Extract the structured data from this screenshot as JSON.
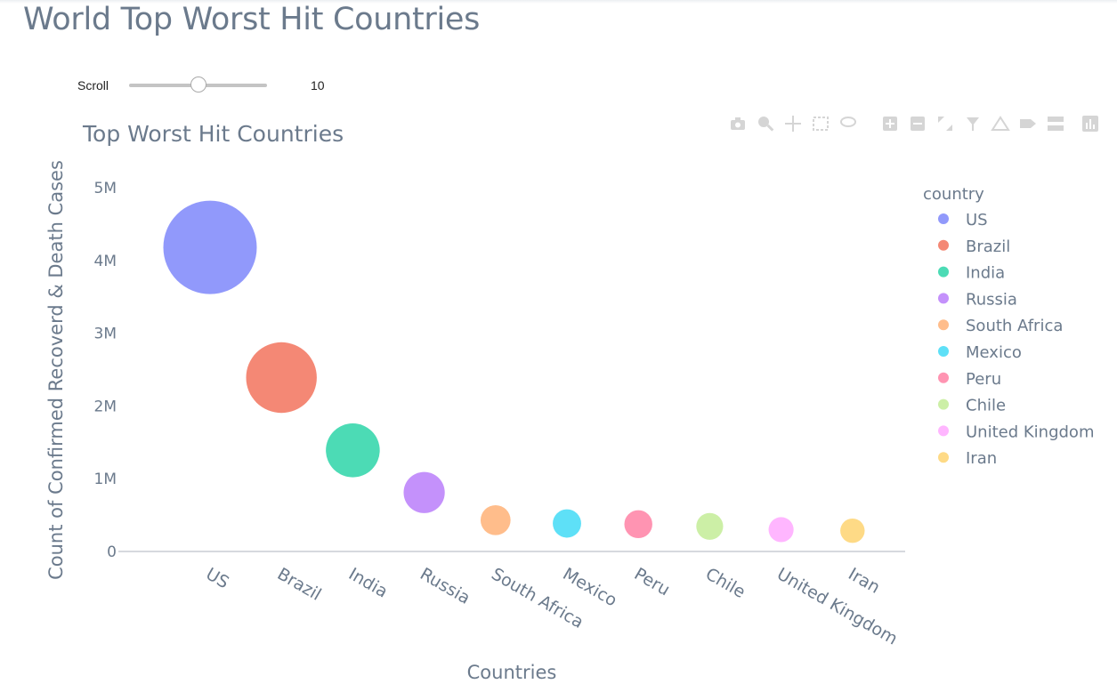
{
  "page": {
    "title": "World Top Worst Hit Countries"
  },
  "slider": {
    "label": "Scroll",
    "value": "10",
    "fraction": 0.5
  },
  "modebar": {
    "icons": [
      "camera-icon",
      "zoom-icon",
      "pan-icon",
      "box-select-icon",
      "lasso-select-icon",
      "zoom-in-icon",
      "zoom-out-icon",
      "autoscale-icon",
      "reset-axes-icon",
      "spike-lines-icon",
      "hover-closest-icon",
      "hover-compare-icon",
      "plotly-logo-icon"
    ]
  },
  "chart_data": {
    "type": "scatter",
    "title": "Top Worst Hit Countries",
    "xlabel": "Countries",
    "ylabel": "Count of Confirmed Recoverd & Death Cases",
    "ylim": [
      0,
      5300000
    ],
    "yticks": [
      0,
      1000000,
      2000000,
      3000000,
      4000000,
      5000000
    ],
    "ytick_labels": [
      "0",
      "1M",
      "2M",
      "3M",
      "4M",
      "5M"
    ],
    "grid": false,
    "legend_title": "country",
    "legend_position": "right",
    "categories": [
      "US",
      "Brazil",
      "India",
      "Russia",
      "South Africa",
      "Mexico",
      "Peru",
      "Chile",
      "United Kingdom",
      "Iran"
    ],
    "series": [
      {
        "name": "US",
        "x": "US",
        "y": 4180000,
        "color": "#636efa"
      },
      {
        "name": "Brazil",
        "x": "Brazil",
        "y": 2390000,
        "color": "#ef553b"
      },
      {
        "name": "India",
        "x": "India",
        "y": 1390000,
        "color": "#00cc96"
      },
      {
        "name": "Russia",
        "x": "Russia",
        "y": 810000,
        "color": "#ab63fa"
      },
      {
        "name": "South Africa",
        "x": "South Africa",
        "y": 430000,
        "color": "#ffa15a"
      },
      {
        "name": "Mexico",
        "x": "Mexico",
        "y": 385000,
        "color": "#19d3f3"
      },
      {
        "name": "Peru",
        "x": "Peru",
        "y": 375000,
        "color": "#ff6692"
      },
      {
        "name": "Chile",
        "x": "Chile",
        "y": 345000,
        "color": "#b6e880"
      },
      {
        "name": "United Kingdom",
        "x": "United Kingdom",
        "y": 300000,
        "color": "#ff97ff"
      },
      {
        "name": "Iran",
        "x": "Iran",
        "y": 285000,
        "color": "#fecb52"
      }
    ]
  }
}
